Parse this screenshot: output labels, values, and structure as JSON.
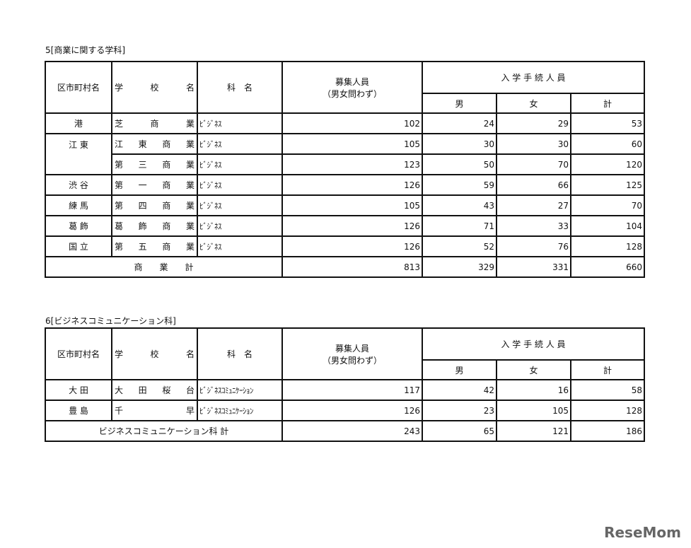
{
  "tables": [
    {
      "title": "5[商業に関する学科]",
      "headers": {
        "area": "区市町村名",
        "school": "学校名",
        "dept": "科　名",
        "quota": "募集人員",
        "quota_sub": "（男女問わず）",
        "enroll": "入 学 手 続 人 員",
        "male": "男",
        "female": "女",
        "total": "計"
      },
      "rows": [
        {
          "area": "港",
          "school": "芝商業",
          "dept": "ﾋﾞｼﾞﾈｽ",
          "quota": "102",
          "male": "24",
          "female": "29",
          "total": "53"
        },
        {
          "area": "江 東",
          "school": "江東商業",
          "dept": "ﾋﾞｼﾞﾈｽ",
          "quota": "105",
          "male": "30",
          "female": "30",
          "total": "60"
        },
        {
          "area": "",
          "school": "第三商業",
          "dept": "ﾋﾞｼﾞﾈｽ",
          "quota": "123",
          "male": "50",
          "female": "70",
          "total": "120"
        },
        {
          "area": "渋 谷",
          "school": "第一商業",
          "dept": "ﾋﾞｼﾞﾈｽ",
          "quota": "126",
          "male": "59",
          "female": "66",
          "total": "125"
        },
        {
          "area": "練 馬",
          "school": "第四商業",
          "dept": "ﾋﾞｼﾞﾈｽ",
          "quota": "105",
          "male": "43",
          "female": "27",
          "total": "70"
        },
        {
          "area": "葛 飾",
          "school": "葛飾商業",
          "dept": "ﾋﾞｼﾞﾈｽ",
          "quota": "126",
          "male": "71",
          "female": "33",
          "total": "104"
        },
        {
          "area": "国 立",
          "school": "第五商業",
          "dept": "ﾋﾞｼﾞﾈｽ",
          "quota": "126",
          "male": "52",
          "female": "76",
          "total": "128"
        }
      ],
      "total_row": {
        "label": "商　　業　　計",
        "quota": "813",
        "male": "329",
        "female": "331",
        "total": "660"
      }
    },
    {
      "title": "6[ビジネスコミュニケーション科]",
      "headers": {
        "area": "区市町村名",
        "school": "学校名",
        "dept": "科　名",
        "quota": "募集人員",
        "quota_sub": "（男女問わず）",
        "enroll": "入 学 手 続 人 員",
        "male": "男",
        "female": "女",
        "total": "計"
      },
      "rows": [
        {
          "area": "大 田",
          "school": "大田桜台",
          "dept": "ﾋﾞｼﾞﾈｽｺﾐｭﾆｹｰｼｮﾝ",
          "quota": "117",
          "male": "42",
          "female": "16",
          "total": "58"
        },
        {
          "area": "豊 島",
          "school": "千早",
          "dept": "ﾋﾞｼﾞﾈｽｺﾐｭﾆｹｰｼｮﾝ",
          "quota": "126",
          "male": "23",
          "female": "105",
          "total": "128"
        }
      ],
      "total_row": {
        "label": "ビジネスコミュニケーション科 計",
        "quota": "243",
        "male": "65",
        "female": "121",
        "total": "186"
      }
    }
  ],
  "watermark": "ReseMom"
}
